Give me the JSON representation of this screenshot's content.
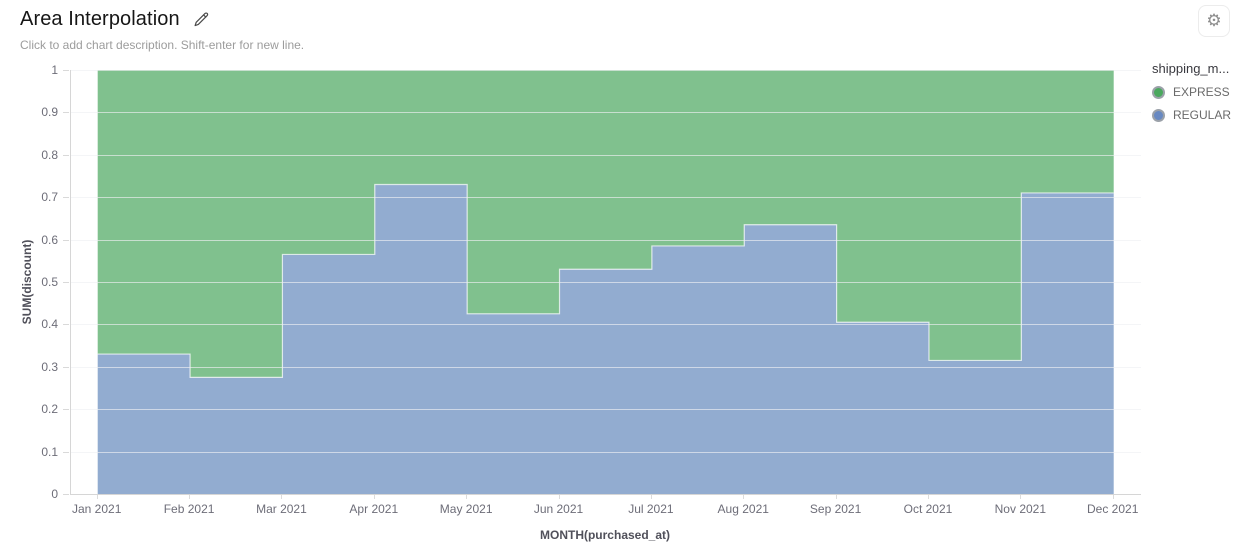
{
  "header": {
    "title": "Area Interpolation",
    "description_placeholder": "Click to add chart description. Shift-enter for new line.",
    "settings_icon": "gear-icon",
    "edit_icon": "pencil-icon"
  },
  "legend": {
    "title": "shipping_m...",
    "items": [
      {
        "label": "EXPRESS",
        "color": "#4aa85e"
      },
      {
        "label": "REGULAR",
        "color": "#6889c2"
      }
    ]
  },
  "chart_data": {
    "type": "area",
    "subtype": "stacked-step-area",
    "interpolation": "step-after",
    "normalized": true,
    "grid": true,
    "legend_position": "right",
    "title": "Area Interpolation",
    "xlabel": "MONTH(purchased_at)",
    "ylabel": "SUM(discount)",
    "ylim": [
      0,
      1
    ],
    "y_ticks": [
      0,
      0.1,
      0.2,
      0.3,
      0.4,
      0.5,
      0.6,
      0.7,
      0.8,
      0.9,
      1
    ],
    "y_tick_labels": [
      "0",
      "0.1",
      "0.2",
      "0.3",
      "0.4",
      "0.5",
      "0.6",
      "0.7",
      "0.8",
      "0.9",
      "1"
    ],
    "categories": [
      "Jan 2021",
      "Feb 2021",
      "Mar 2021",
      "Apr 2021",
      "May 2021",
      "Jun 2021",
      "Jul 2021",
      "Aug 2021",
      "Sep 2021",
      "Oct 2021",
      "Nov 2021",
      "Dec 2021"
    ],
    "stack_order": [
      "REGULAR",
      "EXPRESS"
    ],
    "series": [
      {
        "name": "EXPRESS",
        "fill": "#80c18e",
        "values": [
          0.67,
          0.725,
          0.435,
          0.27,
          0.575,
          0.47,
          0.415,
          0.365,
          0.595,
          0.685,
          0.29,
          0.29
        ]
      },
      {
        "name": "REGULAR",
        "fill": "#92acd0",
        "values": [
          0.33,
          0.275,
          0.565,
          0.73,
          0.425,
          0.53,
          0.585,
          0.635,
          0.405,
          0.315,
          0.71,
          0.71
        ]
      }
    ]
  }
}
